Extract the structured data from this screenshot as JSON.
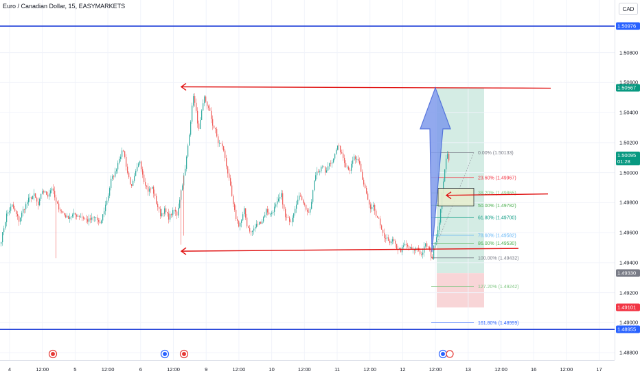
{
  "header": {
    "symbol_title": "Euro / Canadian Dollar, 15, EASYMARKETS",
    "currency": "CAD"
  },
  "colors": {
    "blue_line": "#1e3ed8",
    "red_line": "#e01010",
    "bull": "#26a69a",
    "bear": "#ef5350",
    "target_zone": "#d4ece4",
    "stop_zone": "#f8d5d7",
    "arrow_fill": "#7f9bec",
    "arrow_stroke": "#3d5fd8"
  },
  "price_axis": {
    "ticks": [
      "1.50800",
      "1.50600",
      "1.50400",
      "1.50200",
      "1.50000",
      "1.49800",
      "1.49600",
      "1.49400",
      "1.49200",
      "1.49000",
      "1.48800"
    ],
    "labels": [
      {
        "text": "1.50976",
        "color": "#2962ff",
        "price": 1.50976
      },
      {
        "text": "1.50567",
        "color": "#089981",
        "price": 1.50567
      },
      {
        "text": "1.50095",
        "sub": "01:28",
        "color": "#089981",
        "price": 1.50095
      },
      {
        "text": "1.49330",
        "color": "#787b86",
        "price": 1.4933
      },
      {
        "text": "1.49101",
        "color": "#f23645",
        "price": 1.49101
      },
      {
        "text": "1.48955",
        "color": "#2962ff",
        "price": 1.48955
      }
    ]
  },
  "time_axis": {
    "ticks": [
      {
        "label": "4",
        "t": 0
      },
      {
        "label": "12:00",
        "t": 1
      },
      {
        "label": "5",
        "t": 2
      },
      {
        "label": "12:00",
        "t": 3
      },
      {
        "label": "6",
        "t": 4
      },
      {
        "label": "12:00",
        "t": 5
      },
      {
        "label": "9",
        "t": 6
      },
      {
        "label": "12:00",
        "t": 7
      },
      {
        "label": "10",
        "t": 8
      },
      {
        "label": "12:00",
        "t": 9
      },
      {
        "label": "11",
        "t": 10
      },
      {
        "label": "12:00",
        "t": 11
      },
      {
        "label": "12",
        "t": 12
      },
      {
        "label": "12:00",
        "t": 13
      },
      {
        "label": "13",
        "t": 14
      },
      {
        "label": "12:00",
        "t": 15
      },
      {
        "label": "16",
        "t": 16
      },
      {
        "label": "12:00",
        "t": 17
      },
      {
        "label": "17",
        "t": 18
      }
    ]
  },
  "fibonacci": [
    {
      "text": "0.00% (1.50133)",
      "price": 1.50133,
      "color": "#787b86"
    },
    {
      "text": "23.60% (1.49967)",
      "price": 1.49967,
      "color": "#f23645"
    },
    {
      "text": "38.20% (1.49865)",
      "price": 1.49865,
      "color": "#81c784"
    },
    {
      "text": "50.00% (1.49782)",
      "price": 1.49782,
      "color": "#4caf50"
    },
    {
      "text": "61.80% (1.49700)",
      "price": 1.497,
      "color": "#089981"
    },
    {
      "text": "78.60% (1.49582)",
      "price": 1.49582,
      "color": "#64b5f6"
    },
    {
      "text": "86.00% (1.49530)",
      "price": 1.4953,
      "color": "#4caf50"
    },
    {
      "text": "100.00% (1.49432)",
      "price": 1.49432,
      "color": "#787b86"
    },
    {
      "text": "127.20% (1.49242)",
      "price": 1.49242,
      "color": "#81c784"
    },
    {
      "text": "161.80% (1.48999)",
      "price": 1.48999,
      "color": "#2962ff"
    }
  ],
  "chart_data": {
    "type": "candlestick",
    "y_range": [
      1.4875,
      1.5115
    ],
    "horizontal_levels": [
      1.50976,
      1.48955
    ],
    "resistance_level": 1.50567,
    "support_level": 1.4949,
    "path": [
      [
        0,
        1.4955
      ],
      [
        4,
        1.4972
      ],
      [
        8,
        1.4978
      ],
      [
        13,
        1.4968
      ],
      [
        16,
        1.4975
      ],
      [
        20,
        1.4982
      ],
      [
        24,
        1.4985
      ],
      [
        27,
        1.4978
      ],
      [
        30,
        1.4988
      ],
      [
        34,
        1.4985
      ],
      [
        37,
        1.499
      ],
      [
        40,
        1.498
      ],
      [
        43,
        1.4975
      ],
      [
        48,
        1.497
      ],
      [
        53,
        1.4972
      ],
      [
        58,
        1.4971
      ],
      [
        63,
        1.4968
      ],
      [
        69,
        1.497
      ],
      [
        72,
        1.4965
      ],
      [
        75,
        1.4975
      ],
      [
        78,
        1.4985
      ],
      [
        80,
        1.4995
      ],
      [
        83,
        1.5
      ],
      [
        86,
        1.501
      ],
      [
        89,
        1.5015
      ],
      [
        92,
        1.5
      ],
      [
        95,
        1.499
      ],
      [
        98,
        1.5
      ],
      [
        101,
        1.5008
      ],
      [
        104,
        1.4995
      ],
      [
        107,
        1.4988
      ],
      [
        110,
        1.499
      ],
      [
        113,
        1.498
      ],
      [
        116,
        1.4972
      ],
      [
        119,
        1.4975
      ],
      [
        122,
        1.497
      ],
      [
        126,
        1.4975
      ],
      [
        128,
        1.4972
      ],
      [
        131,
        1.4988
      ],
      [
        134,
        1.5002
      ],
      [
        136,
        1.5018
      ],
      [
        138,
        1.5035
      ],
      [
        140,
        1.5052
      ],
      [
        142,
        1.504
      ],
      [
        144,
        1.5028
      ],
      [
        146,
        1.504
      ],
      [
        148,
        1.505
      ],
      [
        150,
        1.5045
      ],
      [
        152,
        1.504
      ],
      [
        154,
        1.5032
      ],
      [
        156,
        1.5028
      ],
      [
        158,
        1.502
      ],
      [
        161,
        1.5018
      ],
      [
        163,
        1.501
      ],
      [
        165,
        1.5
      ],
      [
        167,
        1.499
      ],
      [
        169,
        1.4978
      ],
      [
        171,
        1.497
      ],
      [
        173,
        1.4965
      ],
      [
        175,
        1.4968
      ],
      [
        177,
        1.4975
      ],
      [
        179,
        1.4965
      ],
      [
        182,
        1.496
      ],
      [
        186,
        1.4965
      ],
      [
        190,
        1.4968
      ],
      [
        193,
        1.4975
      ],
      [
        196,
        1.4972
      ],
      [
        200,
        1.4978
      ],
      [
        204,
        1.4985
      ],
      [
        207,
        1.497
      ],
      [
        211,
        1.4968
      ],
      [
        215,
        1.498
      ],
      [
        218,
        1.4985
      ],
      [
        221,
        1.4978
      ],
      [
        224,
        1.4972
      ],
      [
        226,
        1.498
      ],
      [
        228,
        1.4995
      ],
      [
        230,
        1.5002
      ],
      [
        232,
        1.5
      ],
      [
        234,
        1.5005
      ],
      [
        236,
        1.5
      ],
      [
        238,
        1.5005
      ],
      [
        241,
        1.5008
      ],
      [
        243,
        1.5012
      ],
      [
        245,
        1.5018
      ],
      [
        248,
        1.5013
      ],
      [
        251,
        1.5005
      ],
      [
        254,
        1.5002
      ],
      [
        257,
        1.501
      ],
      [
        259,
        1.5008
      ],
      [
        261,
        1.5005
      ],
      [
        263,
        1.4995
      ],
      [
        265,
        1.499
      ],
      [
        267,
        1.4982
      ],
      [
        269,
        1.4975
      ],
      [
        271,
        1.4978
      ],
      [
        273,
        1.497
      ],
      [
        275,
        1.4968
      ],
      [
        277,
        1.4962
      ],
      [
        279,
        1.4955
      ],
      [
        281,
        1.4958
      ],
      [
        283,
        1.4952
      ],
      [
        285,
        1.4955
      ],
      [
        288,
        1.495
      ],
      [
        291,
        1.4948
      ],
      [
        294,
        1.4952
      ],
      [
        297,
        1.495
      ],
      [
        300,
        1.4948
      ],
      [
        303,
        1.495
      ],
      [
        306,
        1.4945
      ],
      [
        309,
        1.4952
      ],
      [
        311,
        1.495
      ],
      [
        313,
        1.4945
      ],
      [
        314,
        1.4943
      ],
      [
        315,
        1.495
      ],
      [
        316,
        1.4955
      ],
      [
        317,
        1.4958
      ],
      [
        318,
        1.4962
      ],
      [
        319,
        1.4968
      ],
      [
        320,
        1.4975
      ],
      [
        321,
        1.4985
      ],
      [
        322,
        1.4995
      ],
      [
        323,
        1.5003
      ],
      [
        324,
        1.5008
      ],
      [
        325,
        1.5012
      ],
      [
        326,
        1.5009
      ]
    ]
  }
}
